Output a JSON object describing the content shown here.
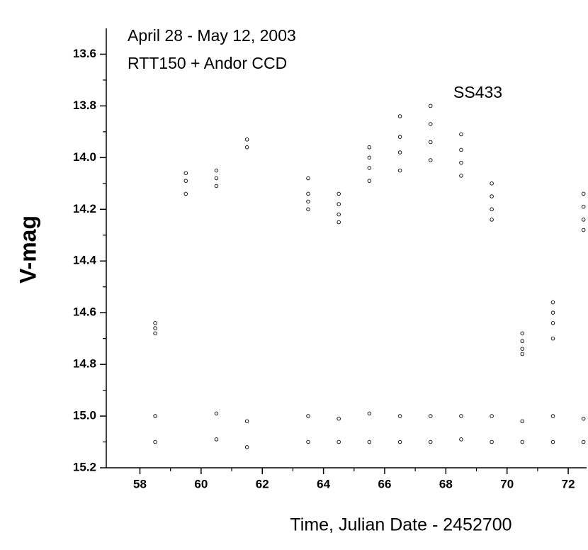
{
  "chart_data": {
    "type": "scatter",
    "annotations": [
      "April 28 - May 12, 2003",
      "RTT150 + Andor CCD",
      "SS433"
    ],
    "xlabel": "Time, Julian Date - 2452700",
    "ylabel": "V-mag",
    "xlim": [
      56.9,
      72.6
    ],
    "ylim": [
      13.5,
      15.2
    ],
    "y_inverted": true,
    "xticks": [
      58,
      60,
      62,
      64,
      66,
      68,
      70,
      72
    ],
    "yticks": [
      13.6,
      13.8,
      {
        "value": 14,
        "label": "14.0"
      },
      14.2,
      14.4,
      14.6,
      14.8,
      {
        "value": 15,
        "label": "15.0"
      },
      15.2
    ],
    "color": "#000000",
    "x": [
      58.5,
      58.5,
      58.5,
      58.5,
      58.5,
      59.5,
      59.5,
      59.5,
      60.5,
      60.5,
      60.5,
      60.5,
      60.5,
      61.5,
      61.5,
      61.5,
      61.5,
      63.5,
      63.5,
      63.5,
      63.5,
      63.5,
      63.5,
      64.5,
      64.5,
      64.5,
      64.5,
      64.5,
      64.5,
      65.5,
      65.5,
      65.5,
      65.5,
      65.5,
      65.5,
      66.5,
      66.5,
      66.5,
      66.5,
      66.5,
      66.5,
      67.5,
      67.5,
      67.5,
      67.5,
      67.5,
      67.5,
      68.5,
      68.5,
      68.5,
      68.5,
      68.5,
      68.5,
      69.5,
      69.5,
      69.5,
      69.5,
      69.5,
      69.5,
      70.5,
      70.5,
      70.5,
      70.5,
      70.5,
      70.5,
      71.5,
      71.5,
      71.5,
      71.5,
      71.5,
      71.5,
      72.5,
      72.5,
      72.5,
      72.5,
      72.5,
      72.5
    ],
    "values": [
      14.64,
      14.66,
      14.68,
      15.0,
      15.1,
      14.06,
      14.09,
      14.14,
      14.05,
      14.08,
      14.11,
      14.99,
      15.09,
      13.93,
      13.96,
      15.02,
      15.12,
      14.08,
      14.14,
      14.17,
      14.2,
      15.0,
      15.1,
      14.14,
      14.18,
      14.22,
      14.25,
      15.01,
      15.1,
      13.96,
      14.0,
      14.04,
      14.09,
      14.99,
      15.1,
      13.84,
      13.92,
      13.98,
      14.05,
      15.0,
      15.1,
      13.8,
      13.87,
      13.94,
      14.01,
      15.0,
      15.1,
      13.91,
      13.97,
      14.02,
      14.07,
      15.0,
      15.09,
      14.1,
      14.15,
      14.2,
      14.24,
      15.0,
      15.1,
      14.68,
      14.71,
      14.74,
      14.76,
      15.02,
      15.1,
      14.56,
      14.6,
      14.64,
      14.7,
      15.0,
      15.1,
      14.14,
      14.19,
      14.24,
      14.28,
      15.01,
      15.1
    ]
  }
}
